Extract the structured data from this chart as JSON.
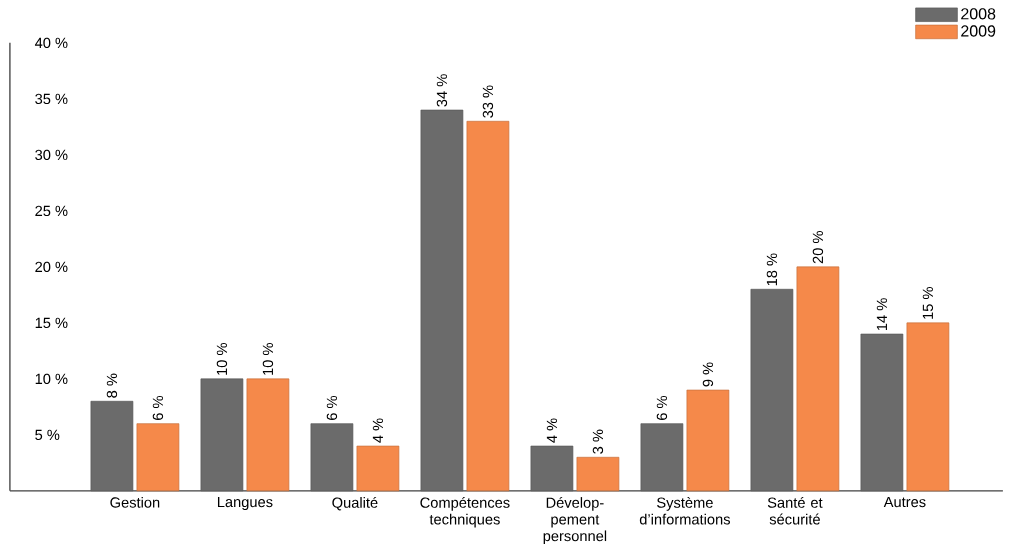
{
  "chart_data": {
    "type": "bar",
    "categories": [
      "Gestion",
      "Langues",
      "Qualité",
      "Compétences techniques",
      "Dévelop- pement personnel",
      "Système d’informations",
      "Santé et sécurité",
      "Autres"
    ],
    "series": [
      {
        "name": "2008",
        "color": "#6b6b6b",
        "values": [
          8,
          10,
          6,
          34,
          4,
          6,
          18,
          14
        ]
      },
      {
        "name": "2009",
        "color": "#f5894a",
        "values": [
          6,
          10,
          4,
          33,
          3,
          9,
          20,
          15
        ]
      }
    ],
    "value_labels": [
      [
        "8 %",
        "10 %",
        "6 %",
        "34 %",
        "4 %",
        "6 %",
        "18 %",
        "14 %"
      ],
      [
        "6 %",
        "10 %",
        "4 %",
        "33 %",
        "3 %",
        "9 %",
        "20 %",
        "15 %"
      ]
    ],
    "ylim": [
      0,
      40
    ],
    "yticks": [
      {
        "value": 5,
        "label": "5 %"
      },
      {
        "value": 10,
        "label": "10 %"
      },
      {
        "value": 15,
        "label": "15 %"
      },
      {
        "value": 20,
        "label": "20 %"
      },
      {
        "value": 25,
        "label": "25 %"
      },
      {
        "value": 30,
        "label": "30 %"
      },
      {
        "value": 35,
        "label": "35 %"
      },
      {
        "value": 40,
        "label": "40 %"
      }
    ],
    "legend": "top right",
    "grid": false
  }
}
